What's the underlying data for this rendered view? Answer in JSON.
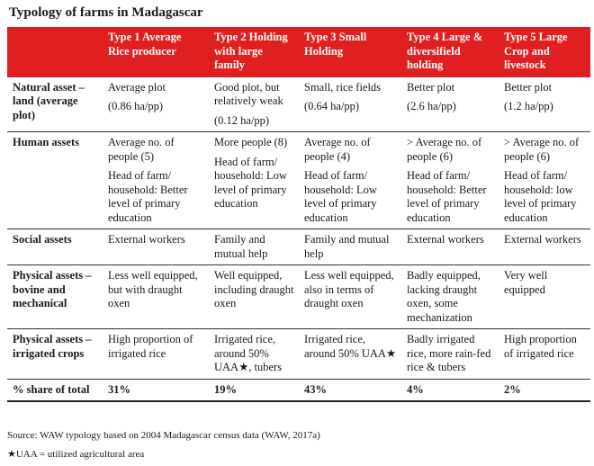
{
  "title": "Typology of farms in Madagascar",
  "table": {
    "columns": [
      {
        "header_line1": "Type 1",
        "header_line2": "Average Rice producer"
      },
      {
        "header_line1": "Type 2",
        "header_line2": "Holding with large family"
      },
      {
        "header_line1": "Type 3",
        "header_line2": "Small Holding"
      },
      {
        "header_line1": "Type 4",
        "header_line2": "Large & diversifield holding"
      },
      {
        "header_line1": "Type 5",
        "header_line2": "Large Crop and livestock"
      }
    ],
    "rows": [
      {
        "label": "Natural asset – land (average plot)",
        "cells": [
          [
            "Average plot",
            "(0.86 ha/pp)"
          ],
          [
            "Good plot, but relatively weak",
            "(0.12 ha/pp)"
          ],
          [
            "Small, rice fields",
            "(0.64 ha/pp)"
          ],
          [
            "Better plot",
            "(2.6 ha/pp)"
          ],
          [
            "Better plot",
            "(1.2 ha/pp)"
          ]
        ]
      },
      {
        "label": "Human assets",
        "cells": [
          [
            "Average no. of people (5)",
            "Head of farm/ household: Better level of primary education"
          ],
          [
            "More people (8)",
            "Head of farm/ household: Low level of primary education"
          ],
          [
            "Average no. of people (4)",
            "Head of farm/ household: Low level of primary education"
          ],
          [
            "> Average no. of people (6)",
            "Head of farm/ household: Better level of primary education"
          ],
          [
            "> Average no. of people (6)",
            "Head of farm/ household: low level of primary education"
          ]
        ]
      },
      {
        "label": "Social assets",
        "cells": [
          [
            "External workers"
          ],
          [
            "Family and mutual help"
          ],
          [
            "Family and mutual help"
          ],
          [
            "External workers"
          ],
          [
            "External workers"
          ]
        ]
      },
      {
        "label": "Physical assets – bovine and mechanical",
        "cells": [
          [
            "Less well equipped, but with draught oxen"
          ],
          [
            "Well equipped, including draught oxen"
          ],
          [
            "Less well equipped, also in terms of draught oxen"
          ],
          [
            "Badly equipped, lacking draught oxen, some mechanization"
          ],
          [
            "Very well equipped"
          ]
        ]
      },
      {
        "label": "Physical assets – irrigated crops",
        "cells": [
          [
            "High proportion of irrigated rice"
          ],
          [
            "Irrigated rice, around 50% UAA★, tubers"
          ],
          [
            "Irrigated rice, around 50% UAA★"
          ],
          [
            "Badly irrigated rice, more rain-fed rice & tubers"
          ],
          [
            "High proportion of irrigated rice"
          ]
        ]
      }
    ],
    "total_row": {
      "label": "% share of total",
      "values": [
        "31%",
        "19%",
        "43%",
        "4%",
        "2%"
      ]
    }
  },
  "source": "Source: WAW typology based on 2004 Madagascar census data (WAW, 2017a)",
  "footnote": "★UAA = utilized agricultural area",
  "colors": {
    "header_bg": "#e02020",
    "header_text": "#ffffff"
  }
}
